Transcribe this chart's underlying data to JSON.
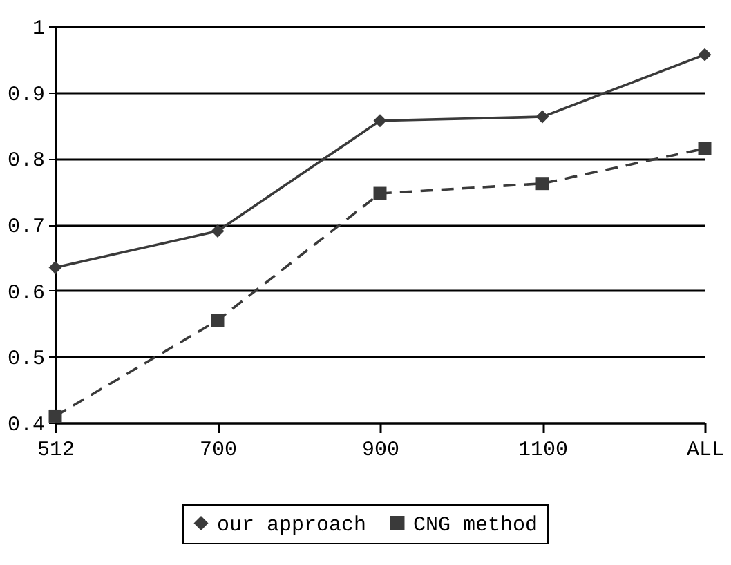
{
  "chart_data": {
    "type": "line",
    "categories": [
      "512",
      "700",
      "900",
      "1100",
      "ALL"
    ],
    "series": [
      {
        "name": "our approach",
        "color": "#3a3a3a",
        "marker": "diamond",
        "line_style": "solid",
        "values": [
          0.635,
          0.69,
          0.857,
          0.863,
          0.957
        ]
      },
      {
        "name": "CNG method",
        "color": "#3a3a3a",
        "marker": "square",
        "line_style": "dashed",
        "values": [
          0.41,
          0.555,
          0.747,
          0.762,
          0.815
        ]
      }
    ],
    "ylim": [
      0.4,
      1
    ],
    "yticks": [
      0.4,
      0.5,
      0.6,
      0.7,
      0.8,
      0.9,
      1
    ],
    "grid": "y",
    "legend": "bottom"
  }
}
